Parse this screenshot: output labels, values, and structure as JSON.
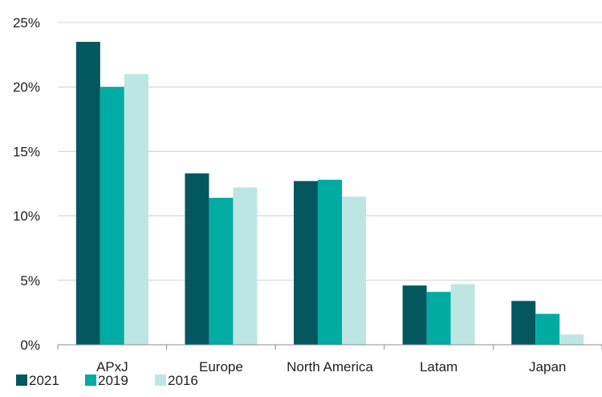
{
  "chart_data": {
    "type": "bar",
    "title": "",
    "xlabel": "",
    "ylabel": "",
    "categories": [
      "APxJ",
      "Europe",
      "North America",
      "Latam",
      "Japan"
    ],
    "y_ticks": [
      "0%",
      "5%",
      "10%",
      "15%",
      "20%",
      "25%"
    ],
    "y_tick_values": [
      0,
      5,
      10,
      15,
      20,
      25
    ],
    "ylim": [
      0,
      25
    ],
    "unit": "%",
    "grid": "horizontal",
    "legend_position": "bottom-left",
    "series": [
      {
        "name": "2021",
        "color": "#05575f",
        "values": [
          23.5,
          13.3,
          12.7,
          4.6,
          3.4
        ]
      },
      {
        "name": "2019",
        "color": "#00aba2",
        "values": [
          20.0,
          11.4,
          12.8,
          4.1,
          2.4
        ]
      },
      {
        "name": "2016",
        "color": "#bde6e2",
        "values": [
          21.0,
          12.2,
          11.5,
          4.7,
          0.8
        ]
      }
    ]
  }
}
